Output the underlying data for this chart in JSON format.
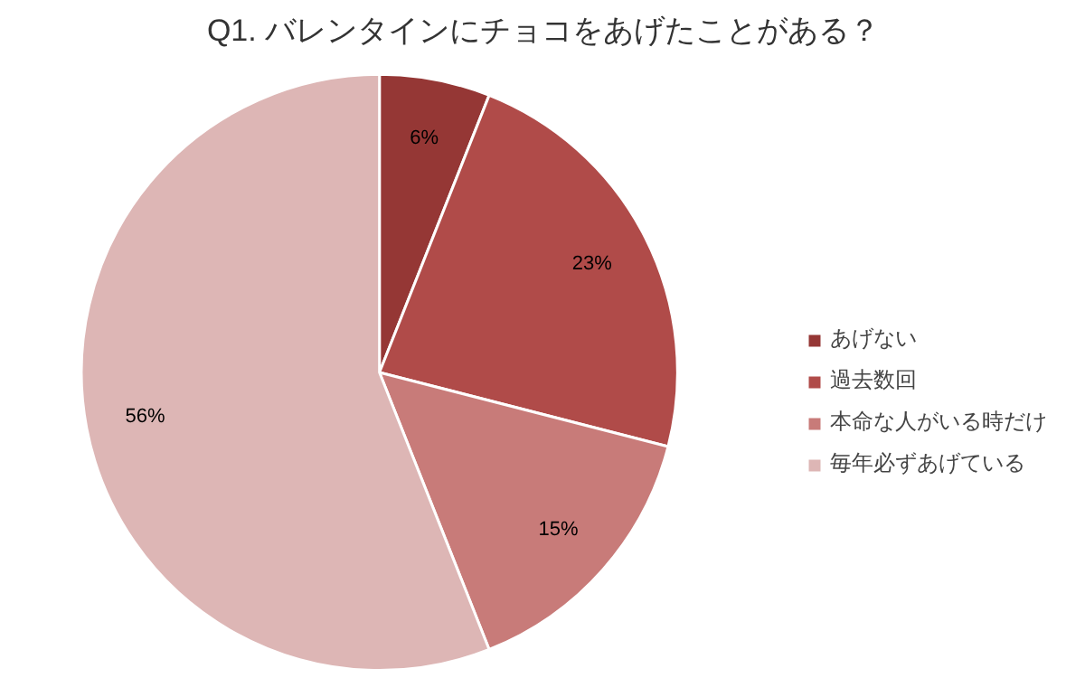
{
  "chart_data": {
    "type": "pie",
    "title": "Q1. バレンタインにチョコをあげたことがある？",
    "categories": [
      "あげない",
      "過去数回",
      "本命な人がいる時だけ",
      "毎年必ずあげている"
    ],
    "values": [
      6,
      23,
      15,
      56
    ],
    "colors": [
      "#953735",
      "#b04b49",
      "#c87b79",
      "#ddb6b5"
    ],
    "value_labels": [
      "6%",
      "23%",
      "15%",
      "56%"
    ],
    "legend": "right"
  }
}
